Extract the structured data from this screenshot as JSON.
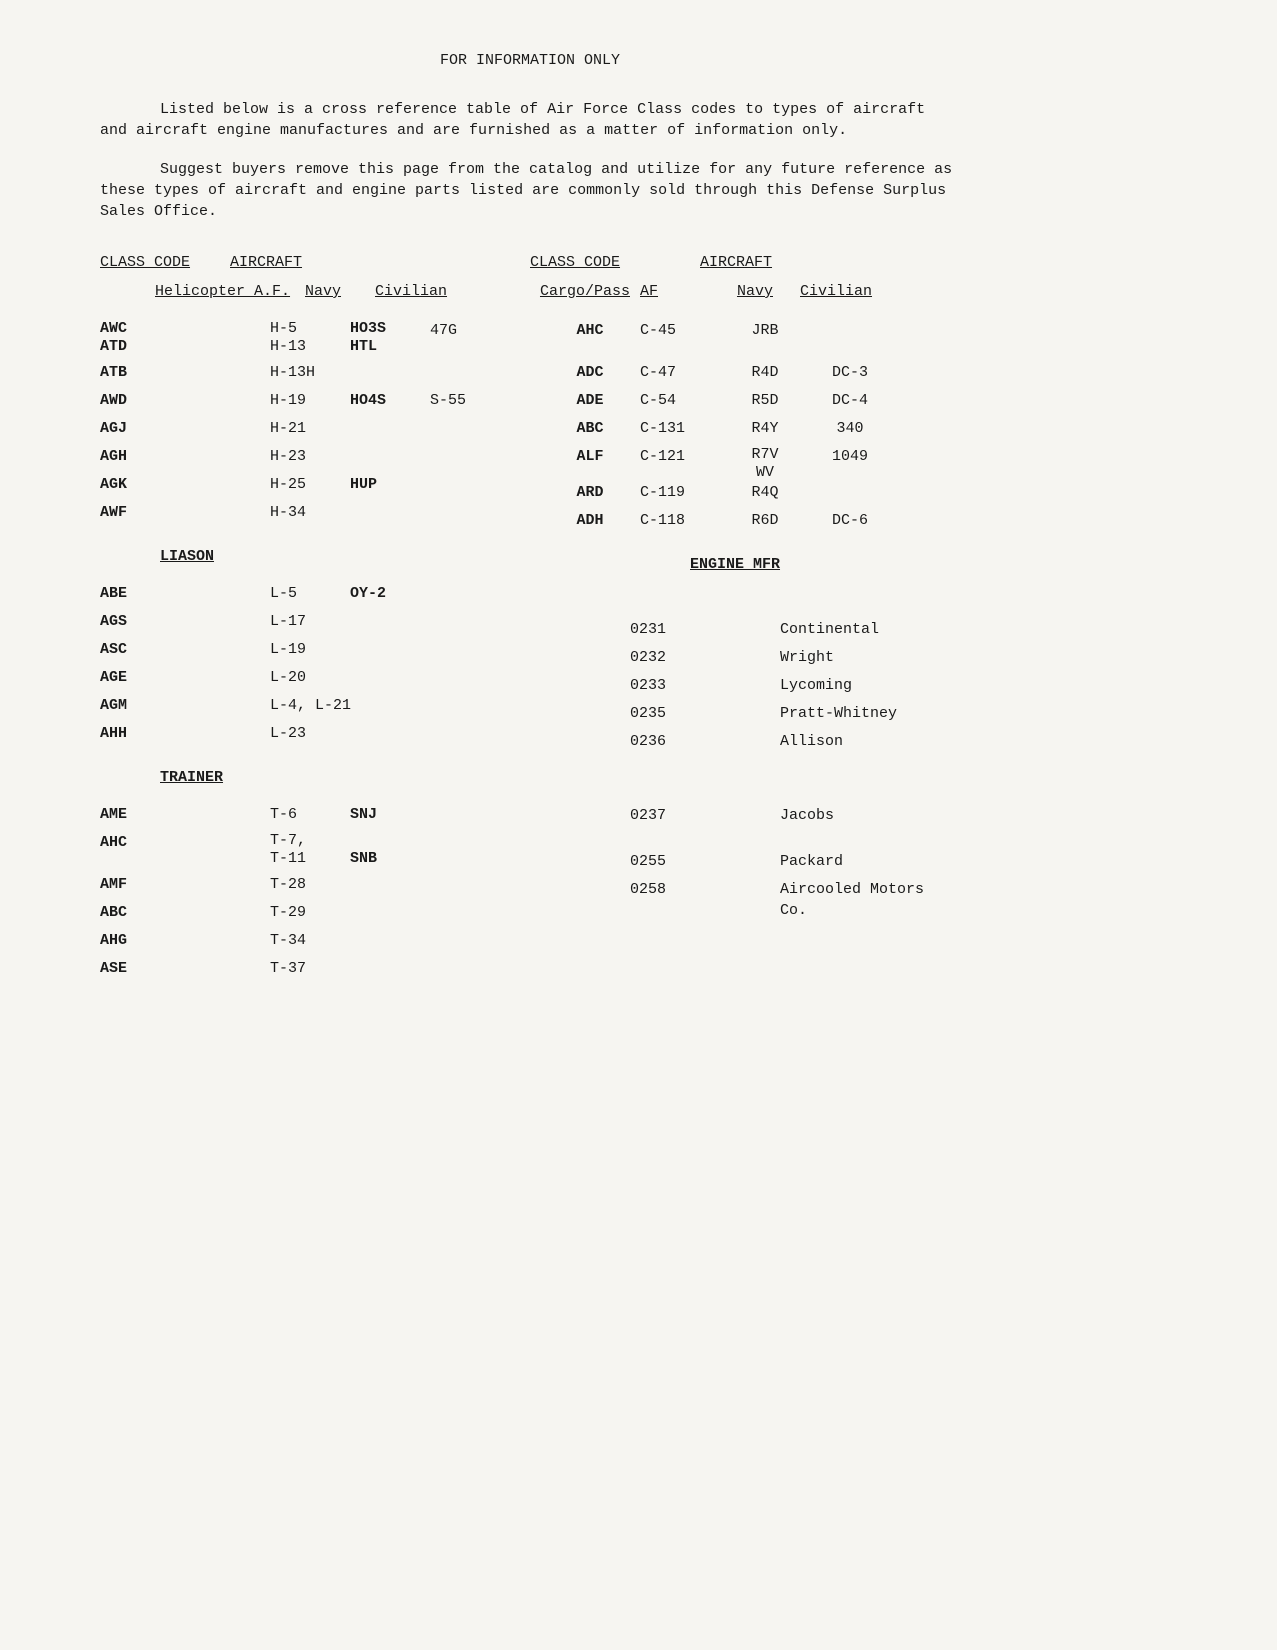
{
  "title": "FOR INFORMATION ONLY",
  "para1": "Listed below is a cross reference table of Air Force Class codes to types of aircraft and aircraft engine manufactures and are furnished as a matter of information only.",
  "para2": "Suggest buyers remove this page from the catalog and utilize for any future reference as these types of aircraft and engine parts listed are commonly sold through this Defense Surplus Sales Office.",
  "hdr_classcode": "CLASS CODE",
  "hdr_aircraft": "AIRCRAFT",
  "sub_heli": "Helicopter A.F.",
  "sub_navy": "Navy",
  "sub_civ": "Civilian",
  "sub_cargo": "Cargo/Pass",
  "sub_af": "AF",
  "cat_liason": "LIASON",
  "cat_trainer": "TRAINER",
  "cat_engine": "ENGINE MFR",
  "heli": [
    {
      "code": "AWC\nATD",
      "af": "H-5\nH-13",
      "navy": "HO3S\nHTL",
      "civ": "47G"
    },
    {
      "code": "ATB",
      "af": "H-13H",
      "navy": "",
      "civ": ""
    },
    {
      "code": "AWD",
      "af": "H-19",
      "navy": "HO4S",
      "civ": "S-55"
    },
    {
      "code": "AGJ",
      "af": "H-21",
      "navy": "",
      "civ": ""
    },
    {
      "code": "AGH",
      "af": "H-23",
      "navy": "",
      "civ": ""
    },
    {
      "code": "AGK",
      "af": "H-25",
      "navy": "HUP",
      "civ": ""
    },
    {
      "code": "AWF",
      "af": "H-34",
      "navy": "",
      "civ": ""
    }
  ],
  "liason": [
    {
      "code": "ABE",
      "af": "L-5",
      "navy": "OY-2"
    },
    {
      "code": "AGS",
      "af": "L-17",
      "navy": ""
    },
    {
      "code": "ASC",
      "af": "L-19",
      "navy": ""
    },
    {
      "code": "AGE",
      "af": "L-20",
      "navy": ""
    },
    {
      "code": "AGM",
      "af": "L-4, L-21",
      "navy": ""
    },
    {
      "code": "AHH",
      "af": "L-23",
      "navy": ""
    }
  ],
  "trainer": [
    {
      "code": "AME",
      "af": "T-6",
      "navy": "SNJ"
    },
    {
      "code": "AHC",
      "af": "T-7,\nT-11",
      "navy": "SNB"
    },
    {
      "code": "AMF",
      "af": "T-28",
      "navy": ""
    },
    {
      "code": "ABC",
      "af": "T-29",
      "navy": ""
    },
    {
      "code": "AHG",
      "af": "T-34",
      "navy": ""
    },
    {
      "code": "ASE",
      "af": "T-37",
      "navy": ""
    }
  ],
  "cargo": [
    {
      "code": "AHC",
      "af": "C-45",
      "navy": "JRB",
      "civ": ""
    },
    {
      "code": "ADC",
      "af": "C-47",
      "navy": "R4D",
      "civ": "DC-3"
    },
    {
      "code": "ADE",
      "af": "C-54",
      "navy": "R5D",
      "civ": "DC-4"
    },
    {
      "code": "ABC",
      "af": "C-131",
      "navy": "R4Y",
      "civ": "340"
    },
    {
      "code": "ALF",
      "af": "C-121",
      "navy": "R7V\nWV",
      "civ": "1049"
    },
    {
      "code": "ARD",
      "af": "C-119",
      "navy": "R4Q",
      "civ": ""
    },
    {
      "code": "ADH",
      "af": "C-118",
      "navy": "R6D",
      "civ": "DC-6"
    }
  ],
  "engine": [
    {
      "code": "0231",
      "mfr": "Continental"
    },
    {
      "code": "0232",
      "mfr": "Wright"
    },
    {
      "code": "0233",
      "mfr": "Lycoming"
    },
    {
      "code": "0235",
      "mfr": "Pratt-Whitney"
    },
    {
      "code": "0236",
      "mfr": "Allison"
    }
  ],
  "engine2": [
    {
      "code": "0237",
      "mfr": "Jacobs"
    },
    {
      "code": "0255",
      "mfr": "Packard"
    },
    {
      "code": "0258",
      "mfr": "Aircooled Motors Co."
    }
  ]
}
